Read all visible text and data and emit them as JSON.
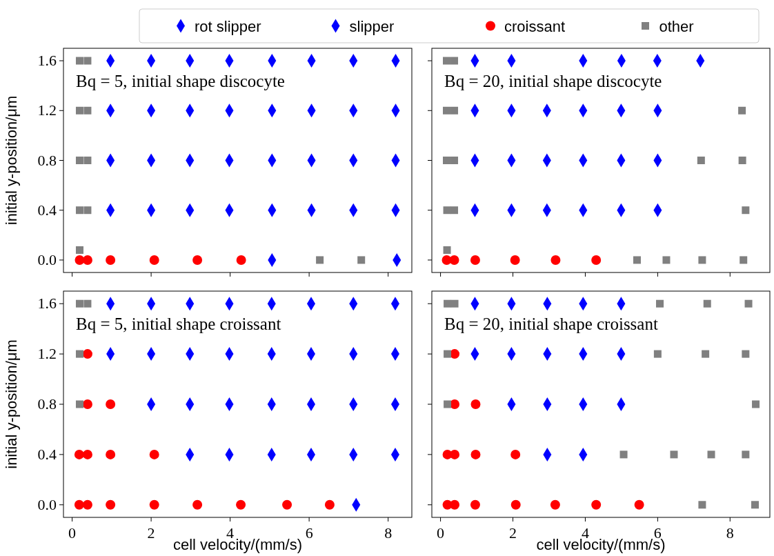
{
  "chart_data": [
    {
      "type": "scatter",
      "annotations": [
        "Bq = 5, initial shape discocyte"
      ],
      "ylabel": "initial y-position/μm",
      "xlim": [
        -0.22,
        8.6
      ],
      "xticks": [
        0,
        2,
        4,
        6,
        8
      ],
      "ylim": [
        -0.1,
        1.7
      ],
      "yticks": [
        {
          "value": 0,
          "label": "0.0"
        },
        {
          "value": 0.4,
          "label": "0.4"
        },
        {
          "value": 0.8,
          "label": "0.8"
        },
        {
          "value": 1.2,
          "label": "1.2"
        },
        {
          "value": 1.6,
          "label": "1.6"
        }
      ],
      "tick_labels": "y",
      "legend": "top",
      "series": [
        {
          "name": "rot slipper",
          "color": "#0000ff",
          "marker": "diamond",
          "x": [
            2.0,
            2.0
          ],
          "values": [
            1.2,
            0.4
          ]
        },
        {
          "name": "slipper",
          "color": "#0000ff",
          "marker": "diamond",
          "x": [
            0.97,
            2.0,
            2.98,
            3.98,
            5.06,
            6.06,
            7.12,
            8.19,
            0.97,
            2.98,
            3.98,
            5.06,
            6.06,
            7.12,
            8.19,
            0.97,
            2.0,
            2.98,
            3.98,
            5.06,
            6.06,
            7.12,
            8.19,
            0.97,
            2.98,
            3.98,
            5.06,
            6.06,
            7.12,
            8.19,
            5.06,
            8.22
          ],
          "values": [
            1.6,
            1.6,
            1.6,
            1.6,
            1.6,
            1.6,
            1.6,
            1.6,
            1.2,
            1.2,
            1.2,
            1.2,
            1.2,
            1.2,
            1.2,
            0.8,
            0.8,
            0.8,
            0.8,
            0.8,
            0.8,
            0.8,
            0.8,
            0.4,
            0.4,
            0.4,
            0.4,
            0.4,
            0.4,
            0.4,
            0,
            0
          ]
        },
        {
          "name": "croissant",
          "color": "#ff0000",
          "marker": "circle",
          "x": [
            0.19,
            0.39,
            0.97,
            2.08,
            3.17,
            4.28
          ],
          "values": [
            0,
            0,
            0,
            0,
            0,
            0
          ]
        },
        {
          "name": "other",
          "color": "#808080",
          "marker": "square",
          "x": [
            0.19,
            0.39,
            0.19,
            0.39,
            0.19,
            0.39,
            0.19,
            0.39,
            0.19,
            6.27,
            7.32
          ],
          "values": [
            1.6,
            1.6,
            1.2,
            1.2,
            0.8,
            0.8,
            0.4,
            0.4,
            0.08,
            0,
            0
          ]
        }
      ]
    },
    {
      "type": "scatter",
      "annotations": [
        "Bq = 20, initial shape discocyte"
      ],
      "xlim": [
        -0.24,
        9.1
      ],
      "xticks": [
        0,
        2,
        4,
        6,
        8
      ],
      "ylim": [
        -0.1,
        1.7
      ],
      "yticks": [
        {
          "value": 0,
          "label": null
        },
        {
          "value": 0.4,
          "label": null
        },
        {
          "value": 0.8,
          "label": null
        },
        {
          "value": 1.2,
          "label": null
        },
        {
          "value": 1.6,
          "label": null
        }
      ],
      "tick_labels": false,
      "series": [
        {
          "color": "#0000ff",
          "marker": "diamond",
          "x": [
            0.95,
            1.96,
            3.94,
            5.0,
            5.99,
            7.18,
            0.95,
            1.96,
            2.94,
            3.94,
            4.99,
            6.0,
            0.95,
            1.96,
            2.94,
            3.94,
            4.99,
            6.0,
            0.95,
            1.96,
            2.94,
            3.94,
            4.99,
            6.0
          ],
          "values": [
            1.6,
            1.6,
            1.6,
            1.6,
            1.6,
            1.6,
            1.2,
            1.2,
            1.2,
            1.2,
            1.2,
            1.2,
            0.8,
            0.8,
            0.8,
            0.8,
            0.8,
            0.8,
            0.4,
            0.4,
            0.4,
            0.4,
            0.4,
            0.4
          ]
        },
        {
          "color": "#ff0000",
          "marker": "circle",
          "x": [
            0.17,
            0.38,
            0.96,
            2.06,
            3.18,
            4.3
          ],
          "values": [
            0,
            0,
            0,
            0,
            0,
            0
          ]
        },
        {
          "color": "#808080",
          "marker": "square",
          "x": [
            0.17,
            0.38,
            0.17,
            0.38,
            8.33,
            0.17,
            0.38,
            7.2,
            8.34,
            0.18,
            0.38,
            8.43,
            0.18,
            5.43,
            6.24,
            7.23,
            8.37
          ],
          "values": [
            1.6,
            1.6,
            1.2,
            1.2,
            1.2,
            0.8,
            0.8,
            0.8,
            0.8,
            0.4,
            0.4,
            0.4,
            0.08,
            0,
            0,
            0,
            0
          ]
        }
      ]
    },
    {
      "type": "scatter",
      "annotations": [
        "Bq = 5, initial shape croissant"
      ],
      "xlabel": "cell velocity/(mm/s)",
      "ylabel": "initial y-position/μm",
      "xlim": [
        -0.22,
        8.6
      ],
      "xticks": [
        0,
        2,
        4,
        6,
        8
      ],
      "ylim": [
        -0.1,
        1.7
      ],
      "yticks": [
        {
          "value": 0,
          "label": "0.0"
        },
        {
          "value": 0.4,
          "label": "0.4"
        },
        {
          "value": 0.8,
          "label": "0.8"
        },
        {
          "value": 1.2,
          "label": "1.2"
        },
        {
          "value": 1.6,
          "label": "1.6"
        }
      ],
      "series": [
        {
          "color": "#0000ff",
          "marker": "diamond",
          "x": [
            2.0,
            2.98,
            2.0,
            2.98,
            2.0,
            2.98
          ],
          "values": [
            1.6,
            1.6,
            1.2,
            1.2,
            0.8,
            0.8
          ]
        },
        {
          "color": "#0000ff",
          "marker": "diamond",
          "x": [
            0.97,
            3.98,
            5.05,
            6.05,
            7.12,
            8.18,
            0.97,
            3.98,
            5.05,
            6.05,
            7.12,
            8.18,
            3.98,
            5.05,
            6.05,
            7.12,
            8.18,
            2.98,
            3.98,
            5.05,
            6.05,
            7.12,
            8.18,
            7.19
          ],
          "values": [
            1.6,
            1.6,
            1.6,
            1.6,
            1.6,
            1.6,
            1.2,
            1.2,
            1.2,
            1.2,
            1.2,
            1.2,
            0.8,
            0.8,
            0.8,
            0.8,
            0.8,
            0.4,
            0.4,
            0.4,
            0.4,
            0.4,
            0.4,
            0
          ]
        },
        {
          "color": "#ff0000",
          "marker": "circle",
          "x": [
            0.39,
            0.39,
            0.97,
            0.18,
            0.39,
            0.97,
            2.08,
            0.18,
            0.39,
            0.97,
            2.08,
            3.17,
            4.27,
            5.44,
            6.52
          ],
          "values": [
            1.2,
            0.8,
            0.8,
            0.4,
            0.4,
            0.4,
            0.4,
            0,
            0,
            0,
            0,
            0,
            0,
            0,
            0
          ]
        },
        {
          "color": "#808080",
          "marker": "square",
          "x": [
            0.19,
            0.39,
            0.19,
            0.19
          ],
          "values": [
            1.6,
            1.6,
            1.2,
            0.8
          ]
        }
      ]
    },
    {
      "type": "scatter",
      "annotations": [
        "Bq = 20, initial shape croissant"
      ],
      "xlabel": "cell velocity/(mm/s)",
      "xlim": [
        -0.24,
        9.1
      ],
      "xticks": [
        0,
        2,
        4,
        6,
        8
      ],
      "ylim": [
        -0.1,
        1.7
      ],
      "yticks": [
        {
          "value": 0,
          "label": null
        },
        {
          "value": 0.4,
          "label": null
        },
        {
          "value": 0.8,
          "label": null
        },
        {
          "value": 1.2,
          "label": null
        },
        {
          "value": 1.6,
          "label": null
        }
      ],
      "tick_labels": "x",
      "series": [
        {
          "color": "#0000ff",
          "marker": "diamond",
          "x": [
            1.96,
            1.96,
            1.96
          ],
          "values": [
            1.6,
            1.2,
            0.8
          ]
        },
        {
          "color": "#0000ff",
          "marker": "diamond",
          "x": [
            0.95,
            2.95,
            3.94,
            4.99,
            0.95,
            2.95,
            3.94,
            4.99,
            2.95,
            3.94,
            4.99,
            2.95,
            3.94
          ],
          "values": [
            1.6,
            1.6,
            1.6,
            1.6,
            1.2,
            1.2,
            1.2,
            1.2,
            0.8,
            0.8,
            0.8,
            0.4,
            0.4
          ]
        },
        {
          "color": "#ff0000",
          "marker": "circle",
          "x": [
            0.39,
            0.39,
            0.97,
            0.19,
            0.39,
            0.97,
            2.07,
            0.19,
            0.39,
            0.96,
            2.08,
            3.17,
            4.3,
            5.49
          ],
          "values": [
            1.2,
            0.8,
            0.8,
            0.4,
            0.4,
            0.4,
            0.4,
            0,
            0,
            0,
            0,
            0,
            0,
            0
          ]
        },
        {
          "color": "#808080",
          "marker": "square",
          "x": [
            0.19,
            0.39,
            6.06,
            7.37,
            8.51,
            0.19,
            6.0,
            7.32,
            8.43,
            0.19,
            8.71,
            5.06,
            6.45,
            7.48,
            8.43,
            7.23,
            8.69
          ],
          "values": [
            1.6,
            1.6,
            1.6,
            1.6,
            1.6,
            1.2,
            1.2,
            1.2,
            1.2,
            0.8,
            0.8,
            0.4,
            0.4,
            0.4,
            0.4,
            0,
            0
          ]
        }
      ]
    }
  ]
}
